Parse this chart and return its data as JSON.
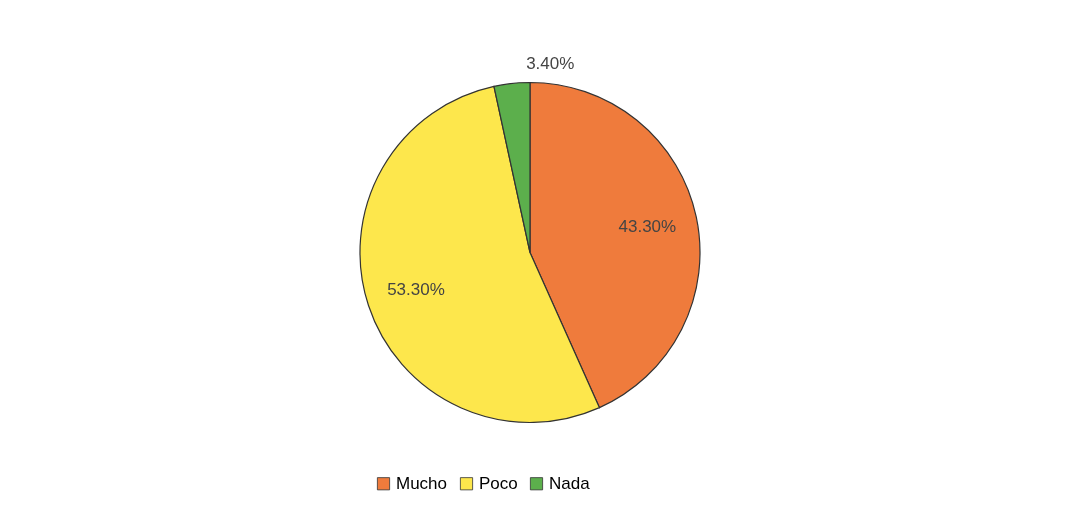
{
  "chart_data": {
    "type": "pie",
    "categories": [
      "Mucho",
      "Poco",
      "Nada"
    ],
    "values": [
      43.3,
      53.3,
      3.4
    ],
    "value_labels": [
      "43.30%",
      "53.30%",
      "3.40%"
    ],
    "colors": [
      "#ef7b3c",
      "#fde74c",
      "#5caf4c"
    ],
    "legend": "bottom"
  }
}
